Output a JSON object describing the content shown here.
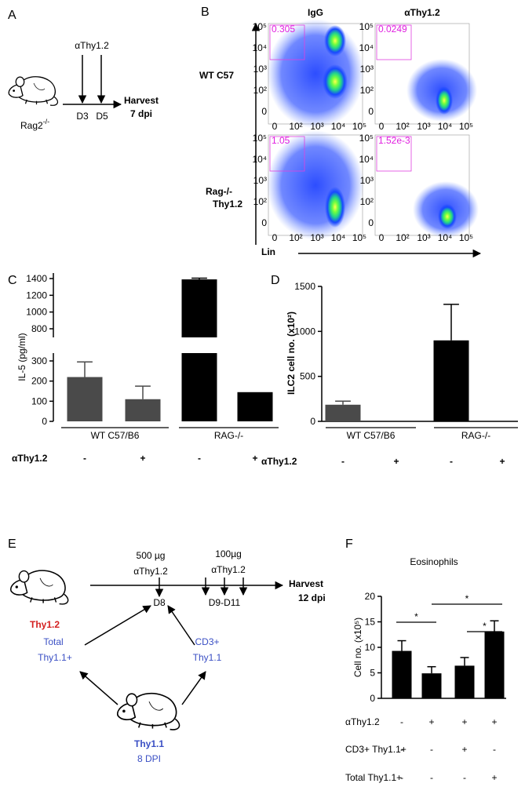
{
  "panel_a": {
    "label": "A",
    "treatment": "αThy1.2",
    "days": [
      "D3",
      "D5"
    ],
    "harvest": "Harvest",
    "harvest_time": "7 dpi",
    "strain": {
      "text": "Rag2",
      "sup": "-/-"
    }
  },
  "panel_b": {
    "label": "B",
    "columns": [
      "IgG",
      "αThy1.2"
    ],
    "rows": [
      "WT C57",
      "Rag-/-"
    ],
    "y_axis": "Thy1.2",
    "x_axis": "Lin",
    "gates": [
      [
        "0.305",
        "0.0249"
      ],
      [
        "1.05",
        "1.52e-3"
      ]
    ],
    "axis_ticks": [
      "0",
      "10²",
      "10³",
      "10⁴",
      "10⁵"
    ]
  },
  "panel_e": {
    "label": "E",
    "first_dose": [
      "500 µg",
      "αThy1.2"
    ],
    "second_dose": [
      "100µg",
      "αThy1.2"
    ],
    "days": [
      "D8",
      "D9-D11"
    ],
    "harvest": "Harvest",
    "harvest_time": "12 dpi",
    "recipient": "Thy1.2",
    "transfer_total": [
      "Total",
      "Thy1.1+"
    ],
    "transfer_cd3": [
      "CD3+",
      "Thy1.1"
    ],
    "donor": "Thy1.1",
    "donor_time": "8 DPI"
  },
  "chart_data": [
    {
      "type": "bar",
      "panel": "C",
      "ylabel": "IL-5 (pg/ml)",
      "ylim": [
        0,
        1400
      ],
      "ybreak": [
        300,
        800
      ],
      "yticks": [
        0,
        100,
        200,
        300,
        800,
        1000,
        1200,
        1400
      ],
      "values": [
        220,
        110,
        1390,
        145
      ],
      "errors": [
        75,
        65,
        15,
        null
      ],
      "colors": [
        "#4a4a4a",
        "#4a4a4a",
        "#000000",
        "#000000"
      ],
      "groups": [
        "WT C57/B6",
        "RAG-/-"
      ],
      "conditions": [
        {
          "name": "αThy1.2",
          "values": [
            "-",
            "+",
            "-",
            "+"
          ]
        }
      ]
    },
    {
      "type": "bar",
      "panel": "D",
      "ylabel": "ILC2 cell no. (x10²)",
      "ylim": [
        0,
        1500
      ],
      "yticks": [
        0,
        500,
        1000,
        1500
      ],
      "values": [
        185,
        0,
        900,
        0
      ],
      "errors": [
        40,
        null,
        400,
        null
      ],
      "colors": [
        "#4a4a4a",
        "#4a4a4a",
        "#000000",
        "#000000"
      ],
      "groups": [
        "WT C57/B6",
        "RAG-/-"
      ],
      "conditions": [
        {
          "name": "αThy1.2",
          "values": [
            "-",
            "+",
            "-",
            "+"
          ]
        }
      ]
    },
    {
      "type": "bar",
      "panel": "F",
      "title": "Eosinophils",
      "ylabel": "Cell no. (x10⁵)",
      "ylim": [
        0,
        20
      ],
      "yticks": [
        0,
        5,
        10,
        15,
        20
      ],
      "values": [
        9.3,
        4.9,
        6.4,
        13.1
      ],
      "errors": [
        2.0,
        1.3,
        1.6,
        2.1
      ],
      "colors": [
        "#000000",
        "#000000",
        "#000000",
        "#000000"
      ],
      "significance": [
        "*",
        "*",
        "*"
      ],
      "conditions": [
        {
          "name": "αThy1.2",
          "values": [
            "-",
            "+",
            "+",
            "+"
          ]
        },
        {
          "name": "CD3+ Thy1.1+",
          "values": [
            "-",
            "-",
            "+",
            "-"
          ]
        },
        {
          "name": "Total Thy1.1+",
          "values": [
            "-",
            "-",
            "-",
            "+"
          ]
        }
      ]
    }
  ]
}
